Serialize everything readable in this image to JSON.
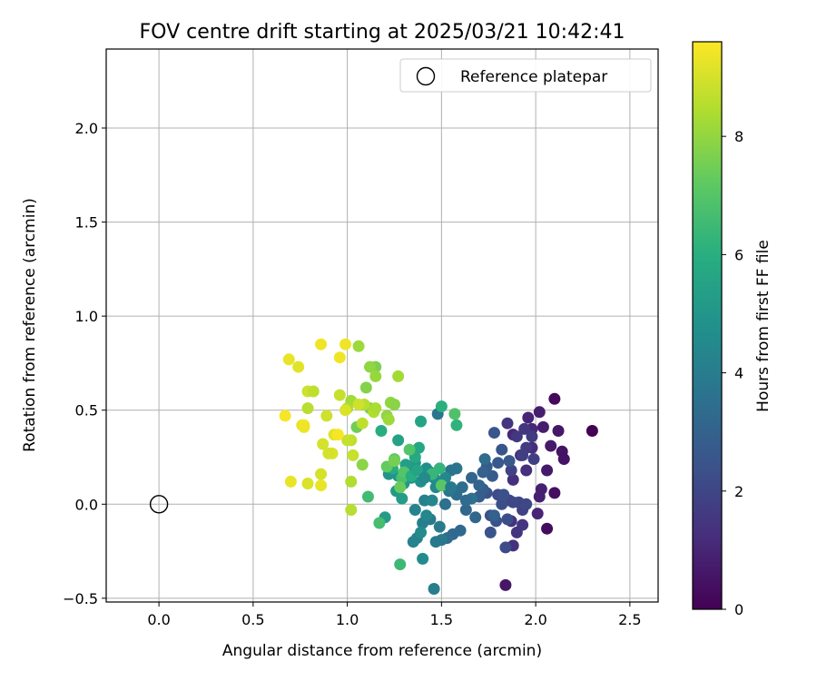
{
  "chart_data": {
    "type": "scatter",
    "title": "FOV centre drift starting at 2025/03/21 10:42:41",
    "xlabel": "Angular distance from reference (arcmin)",
    "ylabel": "Rotation from reference (arcmin)",
    "colorbar_label": "Hours from first FF file",
    "xlim": [
      -0.28,
      2.65
    ],
    "ylim": [
      -0.52,
      2.42
    ],
    "xticks": [
      0.0,
      0.5,
      1.0,
      1.5,
      2.0,
      2.5
    ],
    "xtick_labels": [
      "0.0",
      "0.5",
      "1.0",
      "1.5",
      "2.0",
      "2.5"
    ],
    "yticks": [
      -0.5,
      0.0,
      0.5,
      1.0,
      1.5,
      2.0
    ],
    "ytick_labels": [
      "−0.5",
      "0.0",
      "0.5",
      "1.0",
      "1.5",
      "2.0"
    ],
    "colorbar_range": [
      0,
      9.6
    ],
    "colorbar_ticks": [
      0,
      2,
      4,
      6,
      8
    ],
    "colorbar_tick_labels": [
      "0",
      "2",
      "4",
      "6",
      "8"
    ],
    "colormap": "viridis",
    "grid": true,
    "legend_position": "top-right",
    "reference": {
      "name": "Reference platepar",
      "x": 0.0,
      "y": 0.0
    },
    "points": [
      [
        2.3,
        0.39,
        0.0
      ],
      [
        2.1,
        0.56,
        0.2
      ],
      [
        2.06,
        -0.13,
        0.3
      ],
      [
        2.1,
        0.06,
        0.4
      ],
      [
        2.15,
        0.24,
        0.5
      ],
      [
        2.14,
        0.28,
        0.5
      ],
      [
        2.12,
        0.39,
        0.6
      ],
      [
        1.84,
        -0.43,
        0.6
      ],
      [
        2.08,
        0.31,
        0.7
      ],
      [
        2.06,
        0.18,
        0.7
      ],
      [
        2.04,
        0.41,
        0.8
      ],
      [
        2.02,
        0.49,
        0.8
      ],
      [
        2.03,
        0.08,
        0.9
      ],
      [
        2.02,
        0.04,
        0.9
      ],
      [
        2.01,
        -0.05,
        1.0
      ],
      [
        1.96,
        0.46,
        1.0
      ],
      [
        1.98,
        0.4,
        1.1
      ],
      [
        1.88,
        0.37,
        1.1
      ],
      [
        1.98,
        0.3,
        1.2
      ],
      [
        1.92,
        0.26,
        1.2
      ],
      [
        1.95,
        0.18,
        1.3
      ],
      [
        1.88,
        0.13,
        1.3
      ],
      [
        1.87,
        -0.09,
        1.4
      ],
      [
        1.88,
        -0.22,
        1.4
      ],
      [
        1.9,
        -0.15,
        1.5
      ],
      [
        1.93,
        -0.11,
        1.5
      ],
      [
        1.85,
        0.43,
        1.5
      ],
      [
        1.9,
        0.36,
        1.6
      ],
      [
        1.94,
        0.4,
        1.6
      ],
      [
        1.98,
        0.36,
        1.7
      ],
      [
        1.95,
        0.3,
        1.7
      ],
      [
        1.99,
        0.24,
        1.8
      ],
      [
        1.93,
        0.26,
        1.8
      ],
      [
        1.87,
        0.18,
        1.9
      ],
      [
        1.93,
        -0.03,
        1.9
      ],
      [
        1.86,
        0.02,
        2.0
      ],
      [
        1.91,
        0.01,
        2.0
      ],
      [
        1.95,
        0.0,
        2.1
      ],
      [
        1.88,
        0.01,
        2.1
      ],
      [
        1.8,
        0.05,
        2.2
      ],
      [
        1.84,
        -0.23,
        2.2
      ],
      [
        1.82,
        0.0,
        2.3
      ],
      [
        1.85,
        -0.08,
        2.3
      ],
      [
        1.76,
        -0.06,
        2.4
      ],
      [
        1.79,
        -0.09,
        2.4
      ],
      [
        1.76,
        -0.15,
        2.5
      ],
      [
        1.74,
        0.06,
        2.5
      ],
      [
        1.78,
        0.38,
        2.6
      ],
      [
        1.82,
        0.29,
        2.6
      ],
      [
        1.86,
        0.23,
        2.7
      ],
      [
        1.8,
        0.22,
        2.7
      ],
      [
        1.74,
        0.2,
        2.8
      ],
      [
        1.77,
        0.15,
        2.8
      ],
      [
        1.72,
        0.08,
        2.9
      ],
      [
        1.7,
        0.04,
        2.9
      ],
      [
        1.78,
        -0.06,
        3.0
      ],
      [
        1.72,
        0.17,
        3.0
      ],
      [
        1.66,
        0.14,
        3.1
      ],
      [
        1.7,
        0.1,
        3.1
      ],
      [
        1.68,
        -0.07,
        3.2
      ],
      [
        1.63,
        -0.03,
        3.2
      ],
      [
        1.6,
        -0.14,
        3.3
      ],
      [
        1.56,
        -0.16,
        3.3
      ],
      [
        1.53,
        -0.18,
        3.4
      ],
      [
        1.73,
        0.24,
        3.4
      ],
      [
        1.61,
        0.09,
        3.5
      ],
      [
        1.58,
        0.05,
        3.5
      ],
      [
        1.66,
        0.03,
        3.6
      ],
      [
        1.52,
        0.0,
        3.6
      ],
      [
        1.58,
        0.19,
        3.7
      ],
      [
        1.55,
        0.18,
        3.7
      ],
      [
        1.48,
        0.48,
        3.8
      ],
      [
        1.54,
        0.07,
        3.8
      ],
      [
        1.5,
        -0.19,
        3.9
      ],
      [
        1.47,
        -0.2,
        3.9
      ],
      [
        1.49,
        -0.12,
        4.0
      ],
      [
        1.44,
        -0.08,
        4.0
      ],
      [
        1.46,
        -0.45,
        4.1
      ],
      [
        1.4,
        -0.1,
        4.1
      ],
      [
        1.41,
        0.02,
        4.2
      ],
      [
        1.37,
        -0.18,
        4.2
      ],
      [
        1.36,
        -0.03,
        4.3
      ],
      [
        1.35,
        -0.2,
        4.3
      ],
      [
        1.42,
        -0.06,
        4.4
      ],
      [
        1.45,
        0.02,
        4.4
      ],
      [
        1.47,
        0.09,
        4.5
      ],
      [
        1.52,
        0.14,
        4.5
      ],
      [
        1.4,
        -0.29,
        4.6
      ],
      [
        1.39,
        -0.15,
        4.6
      ],
      [
        1.46,
        0.14,
        4.7
      ],
      [
        1.44,
        0.17,
        4.7
      ],
      [
        1.39,
        0.12,
        4.8
      ],
      [
        1.42,
        0.19,
        4.8
      ],
      [
        1.34,
        0.14,
        4.9
      ],
      [
        1.36,
        0.18,
        4.9
      ],
      [
        1.22,
        0.16,
        5.0
      ],
      [
        1.27,
        0.15,
        5.0
      ],
      [
        1.3,
        0.11,
        5.1
      ],
      [
        1.36,
        0.22,
        5.1
      ],
      [
        1.26,
        0.07,
        5.2
      ],
      [
        1.2,
        -0.07,
        5.3
      ],
      [
        1.29,
        0.03,
        5.3
      ],
      [
        1.31,
        0.21,
        5.4
      ],
      [
        1.27,
        0.34,
        5.5
      ],
      [
        1.39,
        0.44,
        5.6
      ],
      [
        1.38,
        0.3,
        5.7
      ],
      [
        1.36,
        0.25,
        5.8
      ],
      [
        1.24,
        0.19,
        5.9
      ],
      [
        1.18,
        0.39,
        6.0
      ],
      [
        1.5,
        0.52,
        6.1
      ],
      [
        1.58,
        0.42,
        6.2
      ],
      [
        1.49,
        0.19,
        6.3
      ],
      [
        1.45,
        0.16,
        6.4
      ],
      [
        1.28,
        -0.32,
        6.5
      ],
      [
        1.11,
        0.04,
        6.6
      ],
      [
        1.17,
        -0.1,
        6.7
      ],
      [
        1.29,
        0.14,
        6.8
      ],
      [
        1.57,
        0.48,
        6.9
      ],
      [
        1.33,
        0.29,
        7.0
      ],
      [
        1.5,
        0.1,
        7.1
      ],
      [
        1.25,
        0.24,
        7.2
      ],
      [
        1.21,
        0.2,
        7.3
      ],
      [
        1.28,
        0.09,
        7.4
      ],
      [
        1.05,
        0.41,
        7.5
      ],
      [
        1.12,
        0.51,
        7.6
      ],
      [
        1.15,
        0.73,
        7.7
      ],
      [
        1.1,
        0.62,
        7.8
      ],
      [
        1.08,
        0.21,
        7.9
      ],
      [
        1.21,
        0.47,
        8.0
      ],
      [
        1.23,
        0.54,
        8.0
      ],
      [
        1.15,
        0.68,
        8.1
      ],
      [
        1.06,
        0.84,
        8.2
      ],
      [
        1.02,
        0.55,
        8.3
      ],
      [
        1.0,
        0.51,
        8.4
      ],
      [
        1.14,
        0.49,
        8.5
      ],
      [
        1.02,
        -0.03,
        8.6
      ],
      [
        1.09,
        0.53,
        8.6
      ],
      [
        1.08,
        0.43,
        8.7
      ],
      [
        1.02,
        0.34,
        8.7
      ],
      [
        1.0,
        0.34,
        8.8
      ],
      [
        0.96,
        0.58,
        8.8
      ],
      [
        0.89,
        0.47,
        8.9
      ],
      [
        0.79,
        0.6,
        8.9
      ],
      [
        0.87,
        0.32,
        9.0
      ],
      [
        0.86,
        0.16,
        9.0
      ],
      [
        0.79,
        0.11,
        9.1
      ],
      [
        0.92,
        0.27,
        9.1
      ],
      [
        0.99,
        0.5,
        9.1
      ],
      [
        0.93,
        0.37,
        9.2
      ],
      [
        0.76,
        0.42,
        9.2
      ],
      [
        0.74,
        0.73,
        9.2
      ],
      [
        0.69,
        0.77,
        9.3
      ],
      [
        0.86,
        0.1,
        9.3
      ],
      [
        0.7,
        0.12,
        9.3
      ],
      [
        0.96,
        0.78,
        9.4
      ],
      [
        0.99,
        0.85,
        9.4
      ],
      [
        0.86,
        0.85,
        9.4
      ],
      [
        0.77,
        0.42,
        9.5
      ],
      [
        0.67,
        0.47,
        9.5
      ],
      [
        0.95,
        0.37,
        9.5
      ],
      [
        1.25,
        0.53,
        7.9
      ],
      [
        1.27,
        0.68,
        8.3
      ],
      [
        1.02,
        0.12,
        8.5
      ],
      [
        1.22,
        0.45,
        8.2
      ],
      [
        1.3,
        0.17,
        7.0
      ],
      [
        1.34,
        0.15,
        6.0
      ],
      [
        1.25,
        0.23,
        7.6
      ],
      [
        1.15,
        0.51,
        8.4
      ],
      [
        0.79,
        0.51,
        8.6
      ],
      [
        1.06,
        0.53,
        8.9
      ],
      [
        1.12,
        0.73,
        8.0
      ],
      [
        1.03,
        0.26,
        8.8
      ],
      [
        0.82,
        0.6,
        8.7
      ],
      [
        0.77,
        0.41,
        9.4
      ],
      [
        0.9,
        0.27,
        9.0
      ],
      [
        1.37,
        0.18,
        5.6
      ],
      [
        1.41,
        0.14,
        4.6
      ],
      [
        1.55,
        0.09,
        3.9
      ],
      [
        1.63,
        0.02,
        3.4
      ],
      [
        1.83,
        0.05,
        2.4
      ]
    ]
  }
}
